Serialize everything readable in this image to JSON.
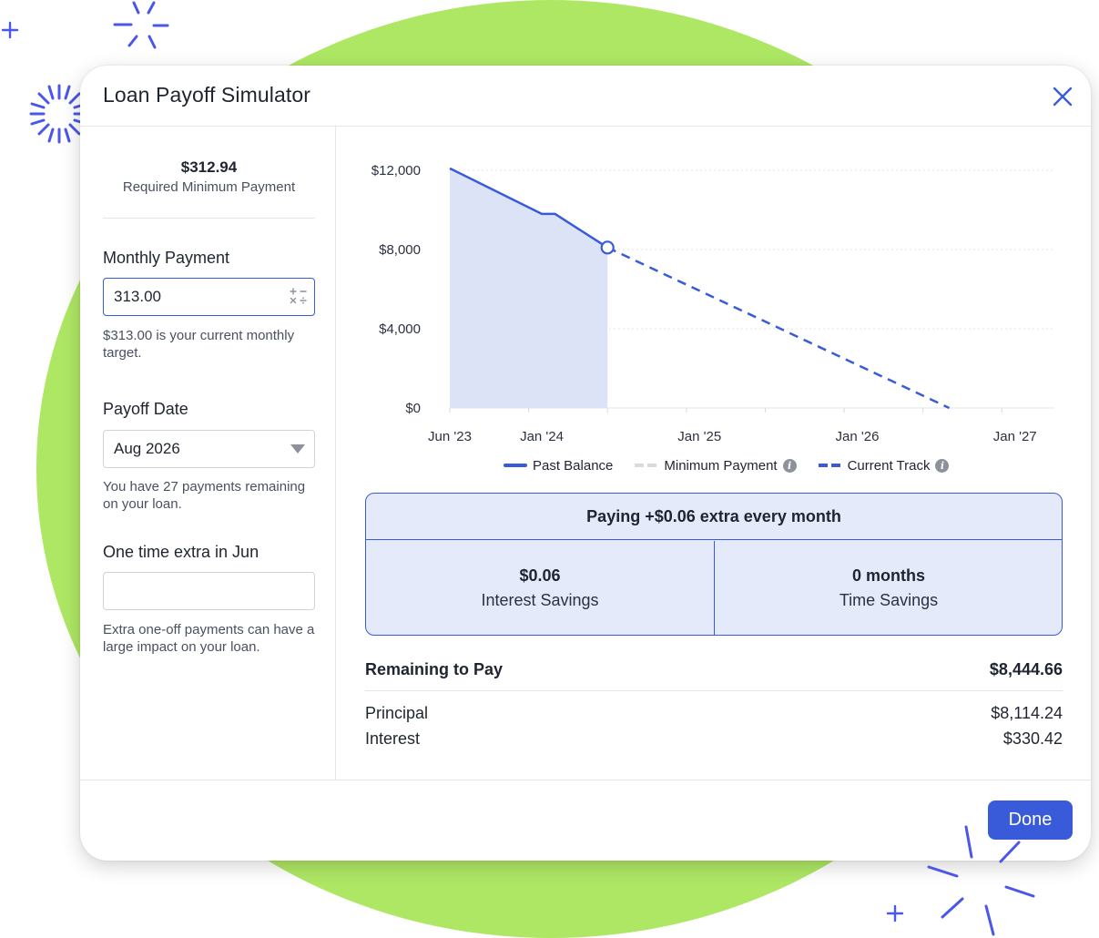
{
  "dialog": {
    "title": "Loan Payoff Simulator",
    "done_label": "Done"
  },
  "left": {
    "min_payment_amount": "$312.94",
    "min_payment_label": "Required Minimum Payment",
    "monthly_payment_label": "Monthly Payment",
    "monthly_payment_value": "313.00",
    "monthly_payment_help": "$313.00 is your current monthly target.",
    "payoff_date_label": "Payoff Date",
    "payoff_date_value": "Aug 2026",
    "payoff_date_help": "You have 27 payments remaining on your loan.",
    "one_time_label": "One time extra in Jun",
    "one_time_value": "",
    "one_time_help": "Extra one-off payments can have a large impact on your loan."
  },
  "chart_data": {
    "type": "line",
    "y_ticks": [
      "$12,000",
      "$8,000",
      "$4,000",
      "$0"
    ],
    "y_tick_values": [
      12000,
      8000,
      4000,
      0
    ],
    "x_ticks": [
      "Jun '23",
      "Jan '24",
      "Jan '25",
      "Jan '26",
      "Jan '27"
    ],
    "x_tick_values": [
      "2023-06",
      "2024-01",
      "2025-01",
      "2026-01",
      "2027-01"
    ],
    "ylim": [
      0,
      12000
    ],
    "xlim": [
      "2023-06",
      "2027-04"
    ],
    "grid": true,
    "legend": [
      "Past Balance",
      "Minimum Payment",
      "Current Track"
    ],
    "series": [
      {
        "name": "Past Balance",
        "color": "#3a5bd9",
        "area_fill": "#dde3f6",
        "x": [
          "2023-06",
          "2024-01",
          "2024-02",
          "2024-06"
        ],
        "y": [
          12100,
          9800,
          9800,
          8100
        ]
      },
      {
        "name": "Current Track",
        "color": "#3a5bd9",
        "style": "dashed",
        "x": [
          "2024-06",
          "2026-08"
        ],
        "y": [
          8100,
          0
        ]
      }
    ],
    "minimum_payment_color": "#d8dade"
  },
  "savings": {
    "headline": "Paying +$0.06 extra every month",
    "interest_value": "$0.06",
    "interest_label": "Interest Savings",
    "time_value": "0 months",
    "time_label": "Time Savings"
  },
  "summary": {
    "remaining_label": "Remaining to Pay",
    "remaining_value": "$8,444.66",
    "principal_label": "Principal",
    "principal_value": "$8,114.24",
    "interest_label": "Interest",
    "interest_value": "$330.42"
  },
  "colors": {
    "accent": "#3a5bd9",
    "background_blob": "#aee764",
    "savings_bg": "#e5eafb"
  },
  "icons": {
    "close": "close-icon",
    "calculator": "calculator-icon",
    "dropdown": "chevron-down-icon",
    "info": "info-icon",
    "sparkle": "sparkle-icon",
    "plus": "plus-icon"
  }
}
